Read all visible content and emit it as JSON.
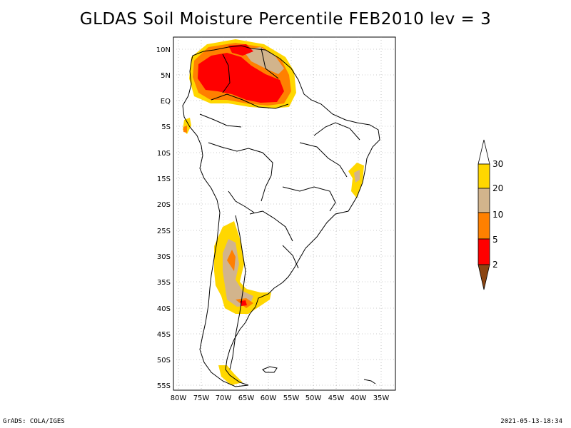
{
  "title": "GLDAS Soil Moisture Percentile FEB2010 lev = 3",
  "map": {
    "lat_labels": [
      "10N",
      "5N",
      "EQ",
      "5S",
      "10S",
      "15S",
      "20S",
      "25S",
      "30S",
      "35S",
      "40S",
      "45S",
      "50S",
      "55S"
    ],
    "lon_labels": [
      "80W",
      "75W",
      "70W",
      "65W",
      "60W",
      "55W",
      "50W",
      "45W",
      "40W",
      "35W"
    ],
    "grid": true
  },
  "colorbar": {
    "levels": [
      "2",
      "5",
      "10",
      "20",
      "30"
    ],
    "colors": {
      "below_2": "#8b4513",
      "2_5": "#ff0000",
      "5_10": "#ff8000",
      "10_20": "#d2b48c",
      "20_30": "#ffd700",
      "above_30": "#ffffff"
    }
  },
  "footer": {
    "left": "GrADS: COLA/IGES",
    "right": "2021-05-13-18:34"
  }
}
